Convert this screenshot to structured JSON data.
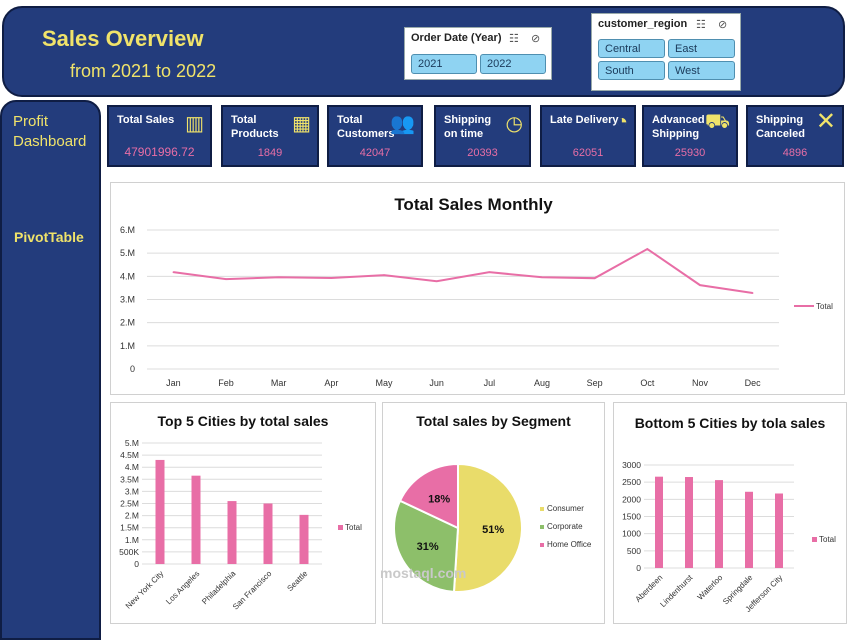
{
  "header": {
    "title": "Sales Overview",
    "subtitle": "from 2021 to 2022"
  },
  "slicers": {
    "order_date": {
      "title": "Order Date (Year)",
      "items": [
        "2021",
        "2022"
      ]
    },
    "region": {
      "title": "customer_region",
      "items": [
        "Central",
        "East",
        "South",
        "West"
      ]
    }
  },
  "sidebar": {
    "items": [
      "Profit\nDashboard",
      "PivotTable"
    ]
  },
  "kpis": [
    {
      "label": "Total Sales",
      "value": "47901996.72",
      "icon": "bar-chart-icon"
    },
    {
      "label": "Total\nProducts",
      "value": "1849",
      "icon": "boxes-icon"
    },
    {
      "label": "Total\nCustomers",
      "value": "42047",
      "icon": "people-icon"
    },
    {
      "label": "Shipping\non time",
      "value": "20393",
      "icon": "stopwatch-icon"
    },
    {
      "label": "Late Delivery",
      "value": "62051",
      "icon": "clock-icon"
    },
    {
      "label": "Advanced\nShipping",
      "value": "25930",
      "icon": "truck-icon"
    },
    {
      "label": "Shipping\nCanceled",
      "value": "4896",
      "icon": "cross-icon"
    }
  ],
  "colors": {
    "navy": "#233c7c",
    "yellow": "#f0e36a",
    "pink": "#e86ea6",
    "green": "#8dbf6a",
    "pie_yellow": "#e9dc6a"
  },
  "chart_data": [
    {
      "type": "line",
      "title": "Total Sales Monthly",
      "categories": [
        "Jan",
        "Feb",
        "Mar",
        "Apr",
        "May",
        "Jun",
        "Jul",
        "Aug",
        "Sep",
        "Oct",
        "Nov",
        "Dec"
      ],
      "series": [
        {
          "name": "Total",
          "values": [
            4.18,
            3.88,
            3.96,
            3.93,
            4.05,
            3.79,
            4.18,
            3.96,
            3.92,
            5.18,
            3.62,
            3.28
          ]
        }
      ],
      "ylim": [
        0,
        6
      ],
      "yticks": [
        "0",
        "1.M",
        "2.M",
        "3.M",
        "4.M",
        "5.M",
        "6.M"
      ],
      "legend": "right"
    },
    {
      "type": "bar",
      "title": "Top 5 Cities by total sales",
      "categories": [
        "New York City",
        "Los Angeles",
        "Philadelphia",
        "San Francisco",
        "Seattle"
      ],
      "series": [
        {
          "name": "Total",
          "values": [
            4.3,
            3.65,
            2.6,
            2.5,
            2.03
          ]
        }
      ],
      "ylim": [
        0,
        5
      ],
      "yticks": [
        "0",
        "500K",
        "1.M",
        "1.5M",
        "2.M",
        "2.5M",
        "3.M",
        "3.5M",
        "4.M",
        "4.5M",
        "5.M"
      ],
      "legend": "right"
    },
    {
      "type": "pie",
      "title": "Total sales by Segment",
      "labels": [
        "Consumer",
        "Corporate",
        "Home Office"
      ],
      "values": [
        51,
        31,
        18
      ],
      "value_labels": [
        "51%",
        "31%",
        "18%"
      ],
      "legend": "right"
    },
    {
      "type": "bar",
      "title": "Bottom 5 Cities by tola sales",
      "categories": [
        "Aberdeen",
        "Lindenhurst",
        "Waterloo",
        "Springdale",
        "Jefferson City"
      ],
      "series": [
        {
          "name": "Total",
          "values": [
            2660,
            2650,
            2560,
            2220,
            2170
          ]
        }
      ],
      "ylim": [
        0,
        3000
      ],
      "yticks": [
        "0",
        "500",
        "1000",
        "1500",
        "2000",
        "2500",
        "3000"
      ],
      "legend": "right"
    }
  ],
  "watermark": "mostaql.com"
}
